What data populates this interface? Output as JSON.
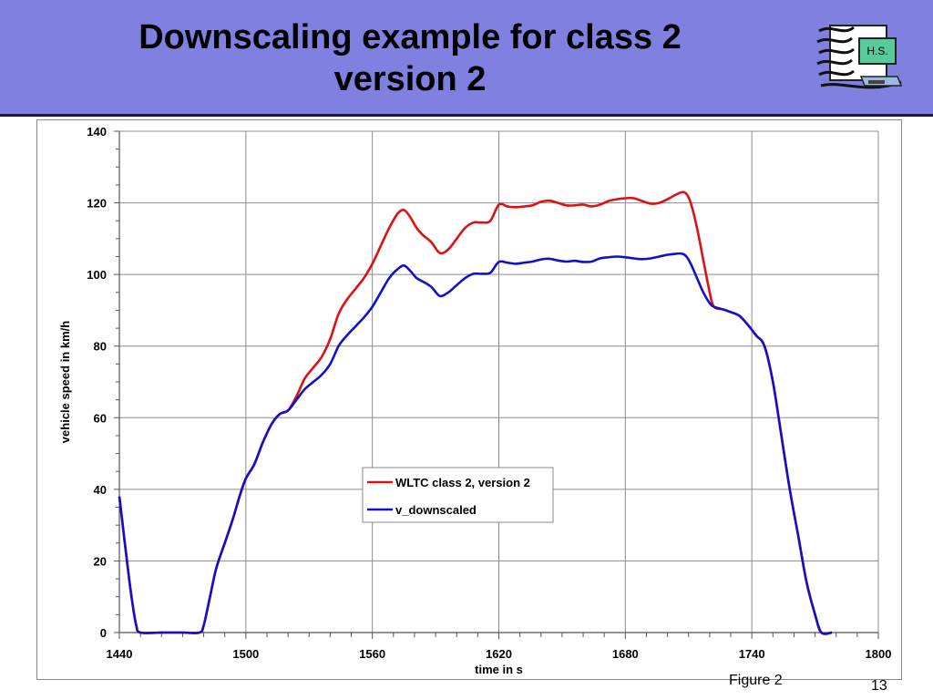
{
  "slide": {
    "title_line1": "Downscaling example for class 2",
    "title_line2": "version 2",
    "logo_text": "H.S.",
    "figure_caption": "Figure 2",
    "page_number": "13",
    "header_color": "#8080e0"
  },
  "chart_data": {
    "type": "line",
    "xlabel": "time in s",
    "ylabel": "vehicle speed in km/h",
    "xlim": [
      1440,
      1800
    ],
    "ylim": [
      0,
      140
    ],
    "x_ticks": [
      1440,
      1500,
      1560,
      1620,
      1680,
      1740,
      1800
    ],
    "y_ticks": [
      0,
      20,
      40,
      60,
      80,
      100,
      120,
      140
    ],
    "grid": true,
    "legend_position": "center",
    "series": [
      {
        "name": "WLTC class 2, version 2",
        "color": "#dd1111",
        "points": [
          [
            1440,
            38
          ],
          [
            1442,
            28
          ],
          [
            1444,
            18
          ],
          [
            1446,
            9
          ],
          [
            1448,
            2
          ],
          [
            1450,
            0
          ],
          [
            1460,
            0
          ],
          [
            1470,
            0
          ],
          [
            1478,
            0
          ],
          [
            1480,
            2
          ],
          [
            1483,
            10
          ],
          [
            1486,
            18
          ],
          [
            1490,
            25
          ],
          [
            1494,
            32
          ],
          [
            1497,
            38
          ],
          [
            1500,
            43
          ],
          [
            1504,
            47
          ],
          [
            1508,
            53
          ],
          [
            1512,
            58
          ],
          [
            1516,
            61
          ],
          [
            1520,
            62
          ],
          [
            1524,
            66
          ],
          [
            1528,
            71
          ],
          [
            1532,
            74
          ],
          [
            1536,
            77
          ],
          [
            1540,
            82
          ],
          [
            1544,
            89
          ],
          [
            1548,
            93
          ],
          [
            1552,
            96
          ],
          [
            1556,
            99
          ],
          [
            1560,
            103
          ],
          [
            1564,
            108
          ],
          [
            1568,
            113
          ],
          [
            1572,
            117
          ],
          [
            1575,
            118
          ],
          [
            1578,
            116
          ],
          [
            1581,
            113
          ],
          [
            1584,
            111
          ],
          [
            1588,
            109
          ],
          [
            1592,
            106
          ],
          [
            1596,
            107
          ],
          [
            1600,
            110
          ],
          [
            1604,
            113
          ],
          [
            1608,
            114.5
          ],
          [
            1612,
            114.5
          ],
          [
            1616,
            115
          ],
          [
            1620,
            119.5
          ],
          [
            1624,
            119
          ],
          [
            1628,
            118.8
          ],
          [
            1632,
            119
          ],
          [
            1636,
            119.3
          ],
          [
            1640,
            120.3
          ],
          [
            1644,
            120.6
          ],
          [
            1648,
            120
          ],
          [
            1652,
            119.3
          ],
          [
            1656,
            119.3
          ],
          [
            1660,
            119.5
          ],
          [
            1664,
            119
          ],
          [
            1668,
            119.5
          ],
          [
            1672,
            120.5
          ],
          [
            1676,
            121
          ],
          [
            1680,
            121.3
          ],
          [
            1684,
            121.3
          ],
          [
            1688,
            120.5
          ],
          [
            1692,
            119.8
          ],
          [
            1696,
            120
          ],
          [
            1700,
            121
          ],
          [
            1704,
            122.3
          ],
          [
            1707,
            123
          ],
          [
            1709,
            122.5
          ],
          [
            1711,
            120
          ],
          [
            1714,
            113
          ],
          [
            1717,
            104
          ],
          [
            1720,
            95
          ],
          [
            1722,
            91
          ],
          [
            1726,
            90.3
          ],
          [
            1730,
            89.5
          ],
          [
            1734,
            88.5
          ],
          [
            1738,
            86
          ],
          [
            1742,
            83
          ],
          [
            1746,
            80
          ],
          [
            1750,
            70
          ],
          [
            1754,
            55
          ],
          [
            1758,
            40
          ],
          [
            1762,
            27
          ],
          [
            1766,
            14
          ],
          [
            1770,
            5
          ],
          [
            1773,
            0
          ],
          [
            1778,
            0
          ]
        ]
      },
      {
        "name": "v_downscaled",
        "color": "#1111cc",
        "points": [
          [
            1440,
            38
          ],
          [
            1442,
            28
          ],
          [
            1444,
            18
          ],
          [
            1446,
            9
          ],
          [
            1448,
            2
          ],
          [
            1450,
            0
          ],
          [
            1460,
            0
          ],
          [
            1470,
            0
          ],
          [
            1478,
            0
          ],
          [
            1480,
            2
          ],
          [
            1483,
            10
          ],
          [
            1486,
            18
          ],
          [
            1490,
            25
          ],
          [
            1494,
            32
          ],
          [
            1497,
            38
          ],
          [
            1500,
            43
          ],
          [
            1504,
            47
          ],
          [
            1508,
            53
          ],
          [
            1512,
            58
          ],
          [
            1516,
            61
          ],
          [
            1520,
            62
          ],
          [
            1524,
            65
          ],
          [
            1528,
            68
          ],
          [
            1532,
            70
          ],
          [
            1536,
            72
          ],
          [
            1540,
            75
          ],
          [
            1544,
            80
          ],
          [
            1548,
            83
          ],
          [
            1552,
            85.5
          ],
          [
            1556,
            88
          ],
          [
            1560,
            91
          ],
          [
            1564,
            95
          ],
          [
            1568,
            99
          ],
          [
            1572,
            101.5
          ],
          [
            1575,
            102.5
          ],
          [
            1578,
            101
          ],
          [
            1581,
            99
          ],
          [
            1584,
            98
          ],
          [
            1588,
            96.5
          ],
          [
            1592,
            94
          ],
          [
            1596,
            95
          ],
          [
            1600,
            97
          ],
          [
            1604,
            99
          ],
          [
            1608,
            100.2
          ],
          [
            1612,
            100.2
          ],
          [
            1616,
            100.5
          ],
          [
            1620,
            103.5
          ],
          [
            1624,
            103.3
          ],
          [
            1628,
            103
          ],
          [
            1632,
            103.3
          ],
          [
            1636,
            103.6
          ],
          [
            1640,
            104.2
          ],
          [
            1644,
            104.4
          ],
          [
            1648,
            103.9
          ],
          [
            1652,
            103.6
          ],
          [
            1656,
            103.8
          ],
          [
            1660,
            103.5
          ],
          [
            1664,
            103.6
          ],
          [
            1668,
            104.5
          ],
          [
            1672,
            104.8
          ],
          [
            1676,
            105
          ],
          [
            1680,
            104.8
          ],
          [
            1684,
            104.5
          ],
          [
            1688,
            104.3
          ],
          [
            1692,
            104.5
          ],
          [
            1696,
            105
          ],
          [
            1700,
            105.5
          ],
          [
            1704,
            105.8
          ],
          [
            1707,
            105.8
          ],
          [
            1709,
            105
          ],
          [
            1711,
            103
          ],
          [
            1714,
            99
          ],
          [
            1717,
            95
          ],
          [
            1720,
            92
          ],
          [
            1722,
            91
          ],
          [
            1726,
            90.3
          ],
          [
            1730,
            89.5
          ],
          [
            1734,
            88.5
          ],
          [
            1738,
            86
          ],
          [
            1742,
            83
          ],
          [
            1746,
            80
          ],
          [
            1750,
            70
          ],
          [
            1754,
            55
          ],
          [
            1758,
            40
          ],
          [
            1762,
            27
          ],
          [
            1766,
            14
          ],
          [
            1770,
            5
          ],
          [
            1773,
            0
          ],
          [
            1778,
            0
          ]
        ]
      }
    ]
  }
}
